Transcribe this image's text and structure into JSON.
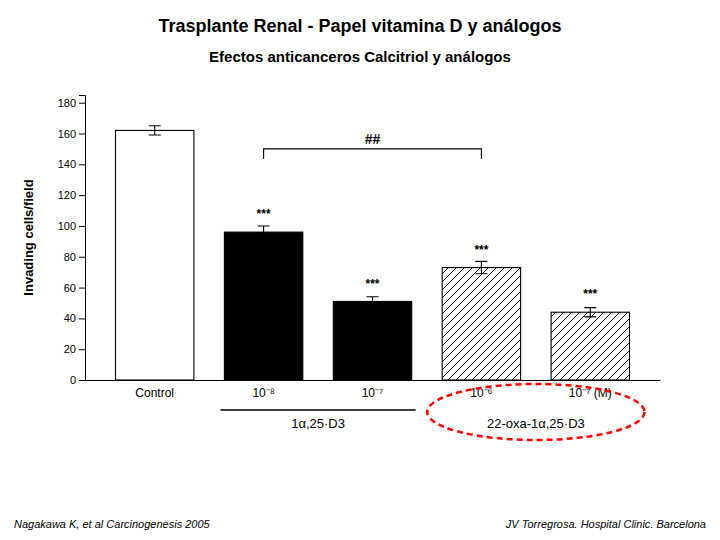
{
  "chart_data": {
    "type": "bar",
    "title": "Trasplante Renal - Papel vitamina D y análogos",
    "subtitle": "Efectos anticanceros Calcitriol y análogos",
    "categories": [
      "Control",
      "10⁻⁸",
      "10⁻⁷",
      "10⁻⁶",
      "10⁻⁷ (M)"
    ],
    "values": [
      162,
      96,
      51,
      73,
      44
    ],
    "errors": [
      3,
      4,
      3,
      4,
      3
    ],
    "colors": [
      "white",
      "black",
      "black",
      "white",
      "white"
    ],
    "ylabel": "Invading cells/field",
    "ylim": [
      0,
      185
    ],
    "yticks": [
      0,
      20,
      40,
      60,
      80,
      100,
      120,
      140,
      160,
      180
    ],
    "grid": false,
    "groups": [
      {
        "label": "1α,25·D3",
        "from": 1,
        "to": 2
      },
      {
        "label": "22-oxa-1α,25·D3",
        "from": 3,
        "to": 4
      }
    ],
    "annotations": [
      {
        "text": "***",
        "category": 1,
        "y": 105
      },
      {
        "text": "***",
        "category": 2,
        "y": 60
      },
      {
        "text": "***",
        "category": 3,
        "y": 82
      },
      {
        "text": "***",
        "category": 4,
        "y": 53
      }
    ],
    "bracket": {
      "text": "##",
      "from": 1,
      "to": 3,
      "y": 150
    },
    "footer_left": "Nagakawa K, et al Carcinogenesis 2005",
    "footer_right": "JV Torregrosa. Hospital Clinic. Barcelona"
  }
}
